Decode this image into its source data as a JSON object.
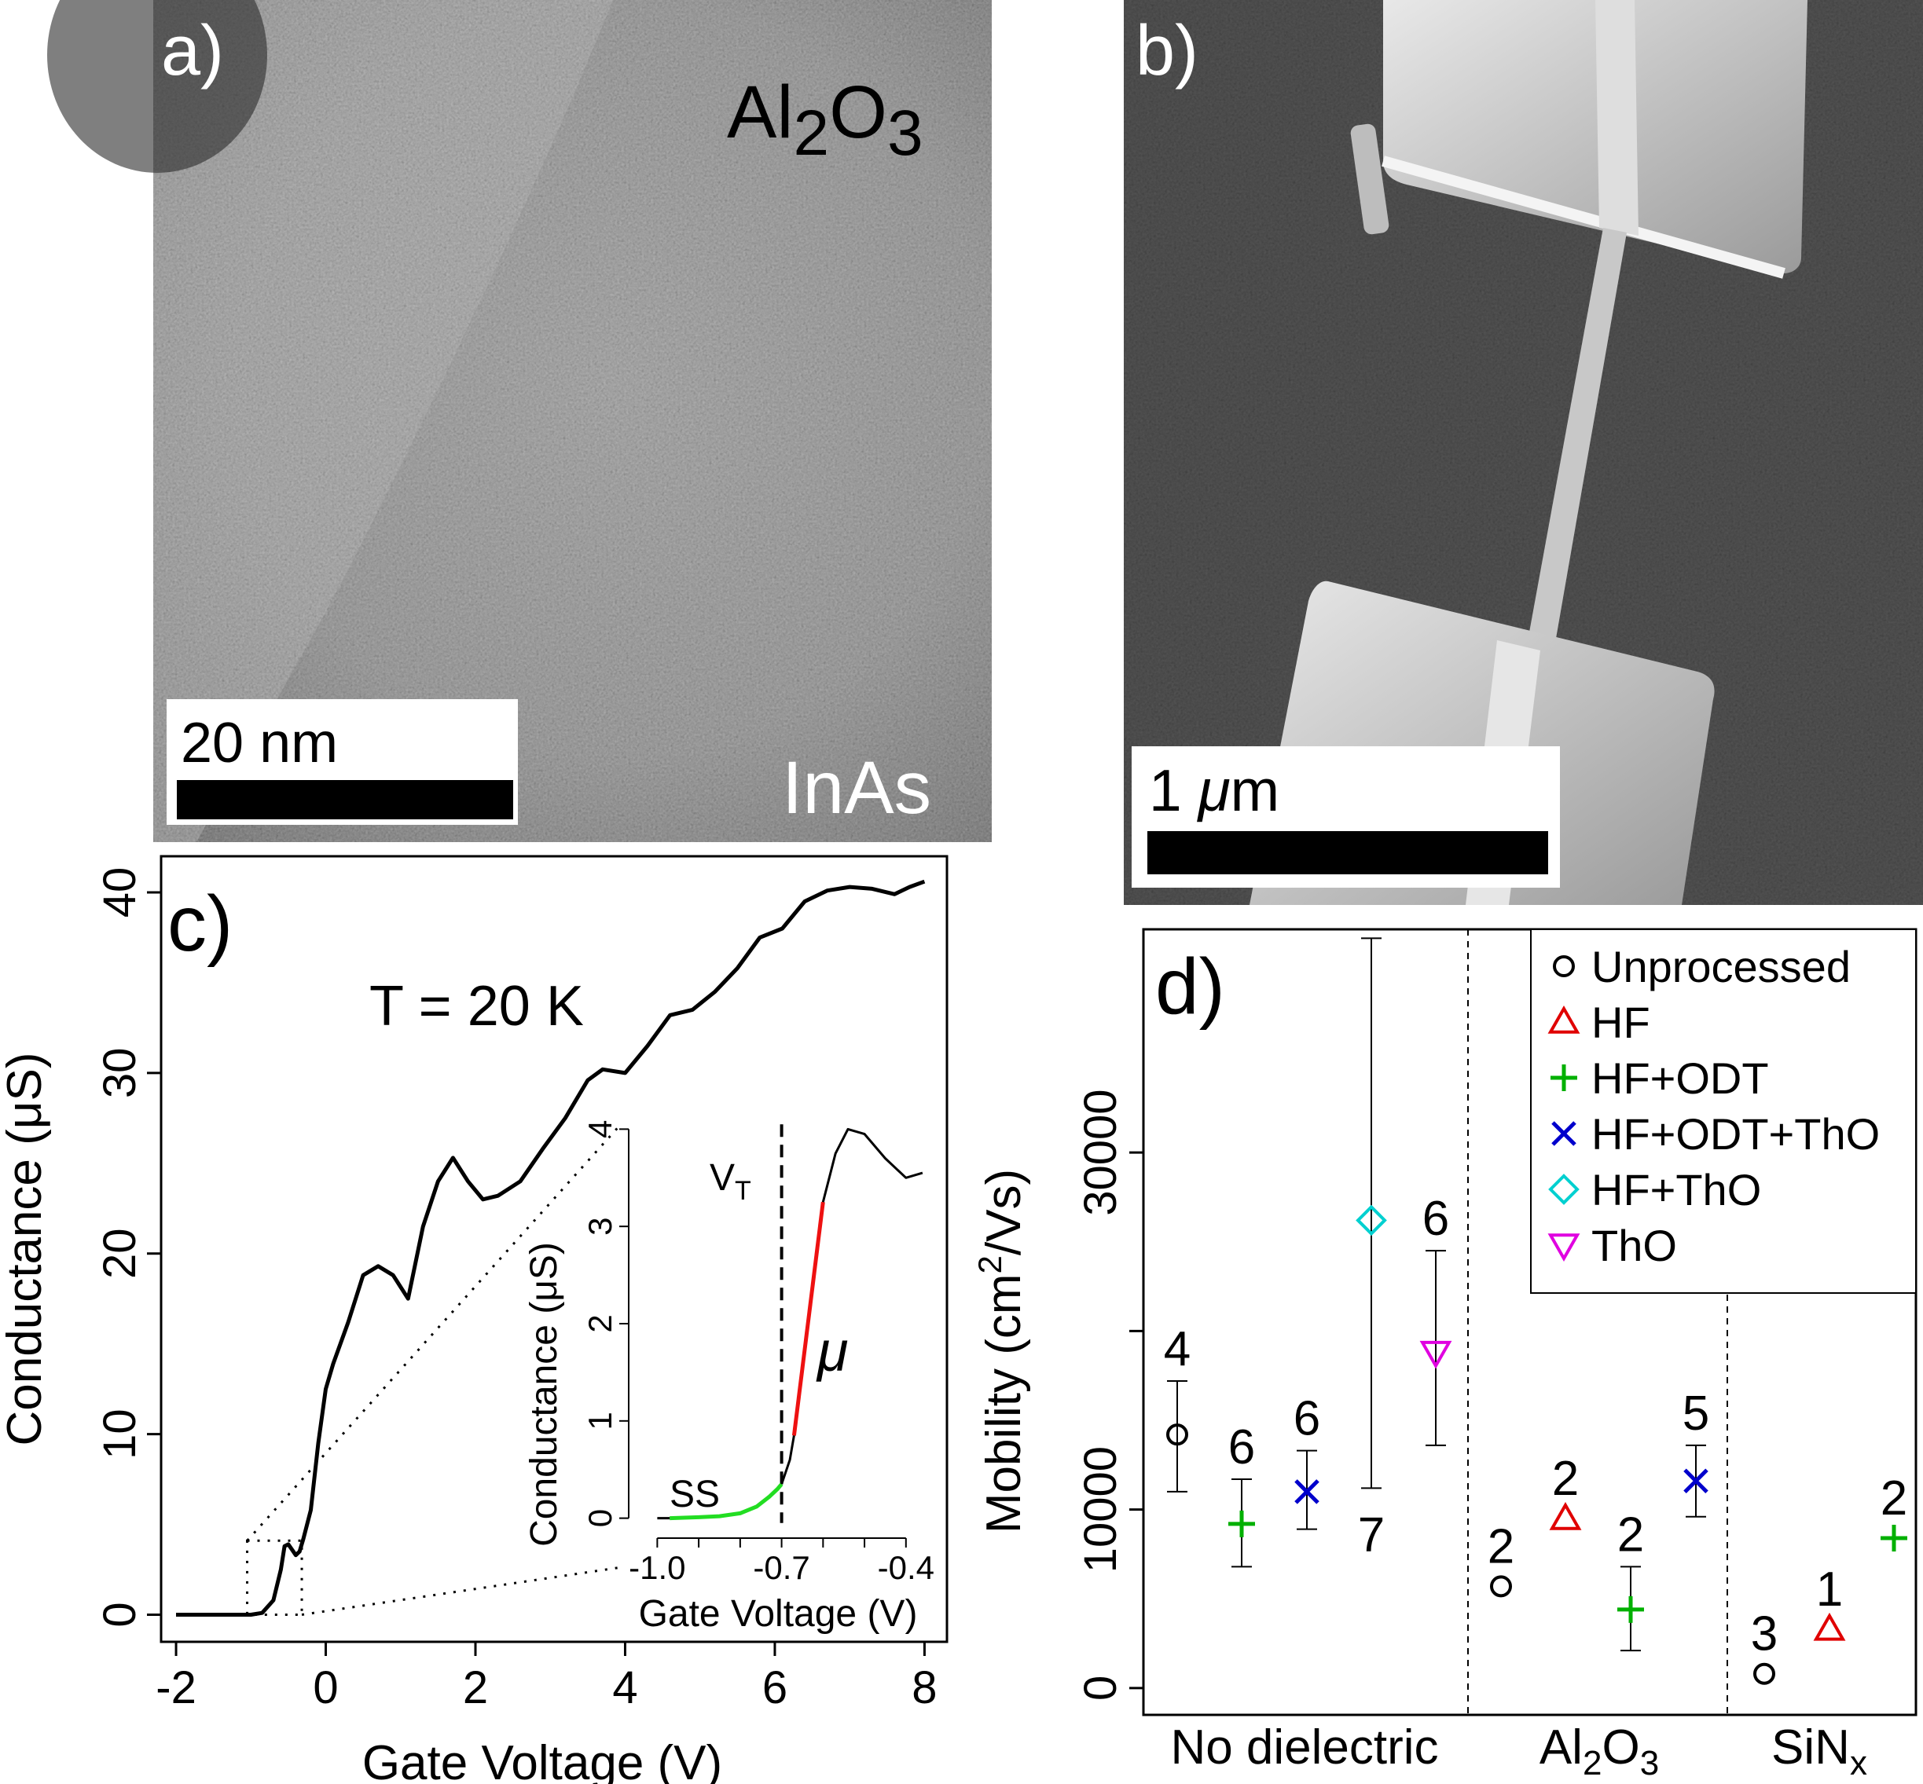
{
  "panels": {
    "a": {
      "label": "a)",
      "top_label_main": "Al",
      "top_label_sub1": "2",
      "top_label_mid": "O",
      "top_label_sub2": "3",
      "bottom_label": "InAs",
      "scalebar_text": "20 nm"
    },
    "b": {
      "label": "b)",
      "scalebar_num": "1 ",
      "scalebar_mu": "μ",
      "scalebar_unit": "m"
    },
    "c": {
      "label": "c)",
      "annotation": "T = 20 K",
      "ylabel": "Conductance (μS)",
      "xlabel": "Gate Voltage (V)",
      "inset": {
        "ylabel": "Conductance (μS)",
        "xlabel": "Gate Voltage (V)",
        "vt_main": "V",
        "vt_sub": "T",
        "ss_label": "SS",
        "mu_label": "μ"
      }
    },
    "d": {
      "label": "d)",
      "ylabel_pre": "Mobility (cm",
      "ylabel_sup": "2",
      "ylabel_post": "/Vs)",
      "groups": [
        {
          "label_main": "No dielectric",
          "label_sub": ""
        },
        {
          "label_main": "Al",
          "label_sub": "2",
          "label_tail": "O",
          "label_sub2": "3"
        },
        {
          "label_main": "SiN",
          "label_sub": "x"
        }
      ]
    }
  },
  "colors": {
    "Unprocessed": "#000000",
    "HF": "#e00000",
    "HF+ODT": "#00b000",
    "HF+ODT+ThO": "#0000cc",
    "HF+ThO": "#00d0d0",
    "ThO": "#e000e0",
    "ss_curve": "#22dd22",
    "mu_curve": "#ee1111"
  },
  "chart_data": [
    {
      "panel": "c",
      "type": "line",
      "xlabel": "Gate Voltage (V)",
      "ylabel": "Conductance (μS)",
      "xlim": [
        -2.2,
        8.3
      ],
      "ylim": [
        -1.5,
        42
      ],
      "xticks": [
        -2,
        0,
        2,
        4,
        6,
        8
      ],
      "yticks": [
        0,
        10,
        20,
        30,
        40
      ],
      "xtick_labels": [
        "-2",
        "0",
        "2",
        "4",
        "6",
        "8"
      ],
      "ytick_labels": [
        "0",
        "10",
        "20",
        "30",
        "40"
      ],
      "series": [
        {
          "x": [
            -2.0,
            -1.0,
            -0.85,
            -0.7,
            -0.6,
            -0.55,
            -0.5,
            -0.45,
            -0.4,
            -0.35,
            -0.3,
            -0.2,
            -0.1,
            0.0,
            0.1,
            0.3,
            0.5,
            0.7,
            0.9,
            1.1,
            1.3,
            1.5,
            1.7,
            1.9,
            2.1,
            2.3,
            2.6,
            2.9,
            3.2,
            3.5,
            3.7,
            4.0,
            4.3,
            4.6,
            4.9,
            5.2,
            5.5,
            5.8,
            6.1,
            6.4,
            6.7,
            7.0,
            7.3,
            7.6,
            7.8,
            8.0
          ],
          "y": [
            0,
            0,
            0.1,
            0.8,
            2.5,
            3.8,
            3.9,
            3.6,
            3.3,
            3.5,
            4.2,
            5.8,
            9.5,
            12.5,
            13.9,
            16.2,
            18.8,
            19.3,
            18.8,
            17.5,
            21.5,
            24.0,
            25.3,
            24.0,
            23.0,
            23.2,
            24.0,
            25.8,
            27.5,
            29.6,
            30.2,
            30.0,
            31.5,
            33.2,
            33.5,
            34.5,
            35.8,
            37.5,
            38.0,
            39.5,
            40.1,
            40.3,
            40.2,
            39.9,
            40.3,
            40.6
          ]
        }
      ]
    },
    {
      "panel": "c-inset",
      "type": "line",
      "xlabel": "Gate Voltage (V)",
      "ylabel": "Conductance (μS)",
      "xlim": [
        -1.05,
        -0.32
      ],
      "ylim": [
        -0.1,
        4.1
      ],
      "xticks": [
        -1.0,
        -0.7,
        -0.4
      ],
      "xtick_labels": [
        "-1.0",
        "-0.7",
        "-0.4"
      ],
      "yticks": [
        0,
        1,
        2,
        3,
        4
      ],
      "ytick_labels": [
        "0",
        "1",
        "2",
        "3",
        "4"
      ],
      "vt": -0.7,
      "series": [
        {
          "name": "",
          "color_key": "ss_curve",
          "x": [
            -0.97,
            -0.9,
            -0.85,
            -0.8,
            -0.76,
            -0.73,
            -0.71,
            -0.7
          ],
          "y": [
            0.0,
            0.01,
            0.02,
            0.05,
            0.12,
            0.22,
            0.3,
            0.35
          ]
        },
        {
          "name": "",
          "color_key": "mu_curve",
          "x": [
            -0.67,
            -0.6
          ],
          "y": [
            0.85,
            3.25
          ]
        },
        {
          "name": "",
          "color_key": "Unprocessed",
          "x": [
            -1.0,
            -0.97
          ],
          "y": [
            0.0,
            0.0
          ]
        },
        {
          "name": "",
          "color_key": "Unprocessed",
          "x": [
            -0.7,
            -0.68,
            -0.67
          ],
          "y": [
            0.35,
            0.6,
            0.85
          ]
        },
        {
          "name": "",
          "color_key": "Unprocessed",
          "x": [
            -0.6,
            -0.57,
            -0.54,
            -0.5,
            -0.45,
            -0.4,
            -0.36
          ],
          "y": [
            3.25,
            3.75,
            4.0,
            3.95,
            3.7,
            3.5,
            3.55
          ]
        }
      ]
    },
    {
      "panel": "d",
      "type": "scatter",
      "ylabel": "Mobility (cm2/Vs)",
      "ylim": [
        -1500,
        42500
      ],
      "yticks": [
        0,
        10000,
        30000
      ],
      "ytick_labels": [
        "0",
        "10000",
        "30000"
      ],
      "legend_position": "top-right",
      "legend": [
        "Unprocessed",
        "HF",
        "HF+ODT",
        "HF+ODT+ThO",
        "HF+ThO",
        "ThO"
      ],
      "points": [
        {
          "group": "No dielectric",
          "series": "Unprocessed",
          "y": 14200,
          "low": 11000,
          "high": 17200,
          "n": "4"
        },
        {
          "group": "No dielectric",
          "series": "HF+ODT",
          "y": 9200,
          "low": 6800,
          "high": 11700,
          "n": "6"
        },
        {
          "group": "No dielectric",
          "series": "HF+ODT+ThO",
          "y": 11000,
          "low": 8900,
          "high": 13300,
          "n": "6"
        },
        {
          "group": "No dielectric",
          "series": "HF+ThO",
          "y": 26200,
          "low": 11200,
          "high": 42000,
          "n": "7"
        },
        {
          "group": "No dielectric",
          "series": "ThO",
          "y": 18800,
          "low": 13600,
          "high": 24500,
          "n": "6"
        },
        {
          "group": "Al2O3",
          "series": "Unprocessed",
          "y": 5700,
          "low": 5700,
          "high": 5700,
          "n": "2"
        },
        {
          "group": "Al2O3",
          "series": "HF",
          "y": 9500,
          "low": 9500,
          "high": 9500,
          "n": "2"
        },
        {
          "group": "Al2O3",
          "series": "HF+ODT",
          "y": 4400,
          "low": 2100,
          "high": 6800,
          "n": "2"
        },
        {
          "group": "Al2O3",
          "series": "HF+ODT+ThO",
          "y": 11600,
          "low": 9600,
          "high": 13600,
          "n": "5"
        },
        {
          "group": "SiNx",
          "series": "Unprocessed",
          "y": 800,
          "low": 800,
          "high": 800,
          "n": "3"
        },
        {
          "group": "SiNx",
          "series": "HF",
          "y": 3300,
          "low": 3300,
          "high": 3300,
          "n": "1"
        },
        {
          "group": "SiNx",
          "series": "HF+ODT",
          "y": 8400,
          "low": 8400,
          "high": 8400,
          "n": "2"
        }
      ]
    }
  ]
}
